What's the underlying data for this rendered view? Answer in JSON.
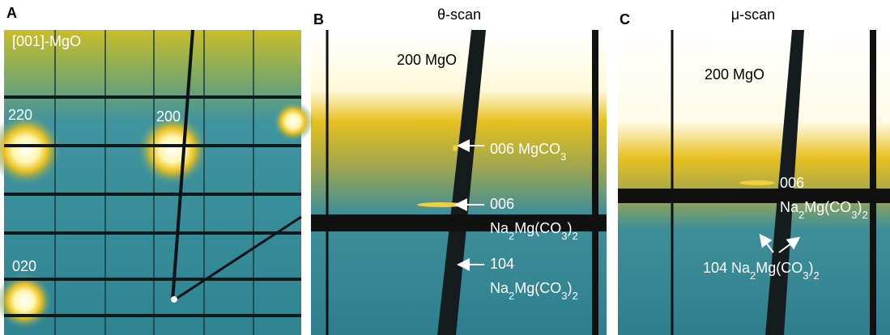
{
  "panels": [
    {
      "letter": "A",
      "labels": [
        {
          "lines": [
            [
              "[001]-MgO"
            ]
          ]
        },
        {
          "lines": [
            [
              "220"
            ]
          ]
        },
        {
          "lines": [
            [
              "200"
            ]
          ]
        },
        {
          "lines": [
            [
              "020"
            ]
          ]
        }
      ]
    },
    {
      "letter": "B",
      "title": "θ-scan",
      "labels": [
        {
          "lines": [
            [
              "200 MgO"
            ]
          ]
        },
        {
          "lines": [
            [
              "006 MgCO",
              "3"
            ]
          ]
        },
        {
          "lines": [
            [
              "006"
            ],
            [
              "Na",
              "2",
              "Mg(CO",
              "3",
              ")",
              "2"
            ]
          ]
        },
        {
          "lines": [
            [
              "104"
            ],
            [
              "Na",
              "2",
              "Mg(CO",
              "3",
              ")",
              "2"
            ]
          ]
        }
      ]
    },
    {
      "letter": "C",
      "title": "μ-scan",
      "labels": [
        {
          "lines": [
            [
              "200 MgO"
            ]
          ]
        },
        {
          "lines": [
            [
              "006"
            ],
            [
              "Na",
              "2",
              "Mg(CO",
              "3",
              ")",
              "2"
            ]
          ]
        },
        {
          "lines": [
            [
              "104 Na",
              "2",
              "Mg(CO",
              "3",
              ")",
              "2"
            ]
          ]
        }
      ]
    }
  ]
}
